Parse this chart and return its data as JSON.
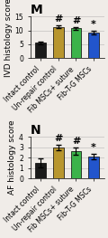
{
  "panel_M": {
    "title": "M",
    "ylabel": "IVD histology score",
    "ylim": [
      0,
      15
    ],
    "yticks": [
      0,
      5,
      10,
      15
    ],
    "categories": [
      "Intact control",
      "Un-repair control",
      "Fib MSCs+ suture",
      "Fib-T-G MSCs"
    ],
    "values": [
      5.5,
      11.2,
      10.8,
      9.3
    ],
    "errors": [
      0.4,
      0.5,
      0.5,
      0.6
    ],
    "bar_colors": [
      "#1a1a1a",
      "#b8962e",
      "#3cb34a",
      "#2255cc"
    ],
    "annotations": [
      "",
      "#",
      "#",
      "*"
    ]
  },
  "panel_N": {
    "title": "N",
    "ylabel": "AF histology score",
    "ylim": [
      0,
      4
    ],
    "yticks": [
      0,
      1,
      2,
      3,
      4
    ],
    "categories": [
      "Intact control",
      "Un-repair control",
      "Fib MSCs+ suture",
      "Fib-T-G MSCs"
    ],
    "values": [
      1.5,
      2.95,
      2.65,
      2.1
    ],
    "errors": [
      0.45,
      0.25,
      0.35,
      0.25
    ],
    "bar_colors": [
      "#1a1a1a",
      "#b8962e",
      "#3cb34a",
      "#2255cc"
    ],
    "annotations": [
      "",
      "#",
      "#",
      "*"
    ]
  },
  "background_color": "#f0ece8",
  "bar_width": 0.6,
  "tick_label_fontsize": 5.5,
  "ylabel_fontsize": 6.5,
  "title_fontsize": 10,
  "annot_fontsize": 8
}
